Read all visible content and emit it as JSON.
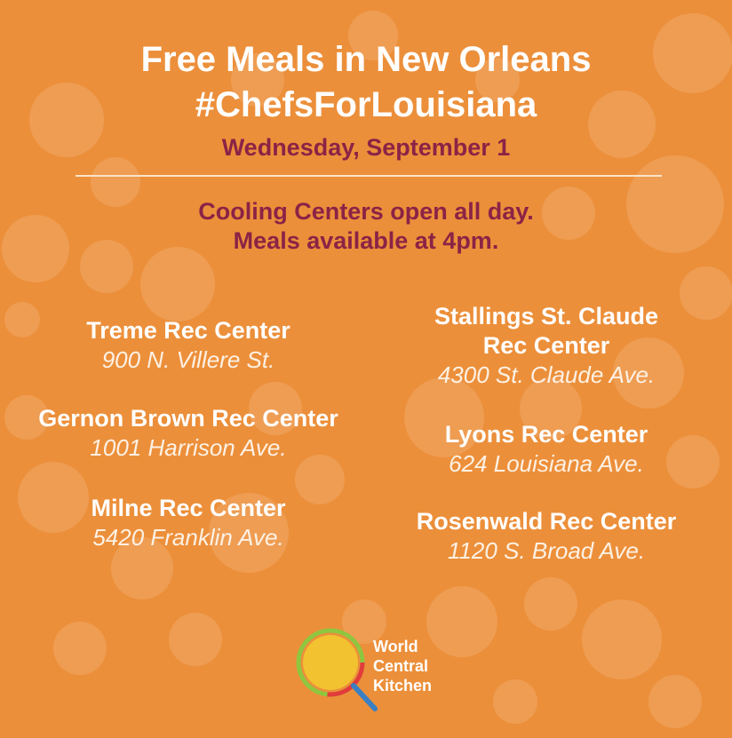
{
  "header": {
    "title_lines": [
      "Free Meals in New Orleans",
      "#ChefsForLouisiana"
    ],
    "date": "Wednesday, September 1"
  },
  "notice": {
    "lines": [
      "Cooling Centers open all day.",
      "Meals available at 4pm."
    ]
  },
  "locations": {
    "left": [
      {
        "name_lines": [
          "Treme Rec Center"
        ],
        "address": "900 N. Villere St."
      },
      {
        "name_lines": [
          "Gernon Brown Rec Center"
        ],
        "address": "1001 Harrison Ave."
      },
      {
        "name_lines": [
          "Milne Rec Center"
        ],
        "address": "5420 Franklin Ave."
      }
    ],
    "right": [
      {
        "name_lines": [
          "Stallings St. Claude",
          "Rec Center"
        ],
        "address": "4300 St. Claude Ave."
      },
      {
        "name_lines": [
          "Lyons Rec Center"
        ],
        "address": "624 Louisiana Ave."
      },
      {
        "name_lines": [
          "Rosenwald Rec Center"
        ],
        "address": "1120 S. Broad Ave."
      }
    ]
  },
  "logo": {
    "lines": [
      "World",
      "Central",
      "Kitchen"
    ]
  }
}
